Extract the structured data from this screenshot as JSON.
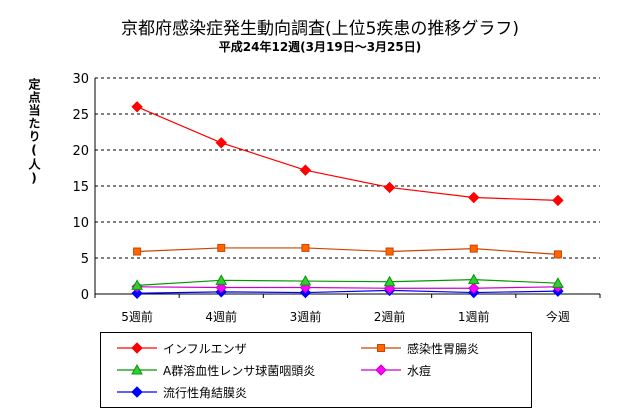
{
  "header": {
    "title": "京都府感染症発生動向調査(上位5疾患の推移グラフ)",
    "subtitle": "平成24年12週(3月19日〜3月25日)"
  },
  "chart_data": {
    "type": "line",
    "title": "京都府感染症発生動向調査(上位5疾患の推移グラフ)",
    "subtitle": "平成24年12週(3月19日〜3月25日)",
    "xlabel": "",
    "ylabel": "定点当たり(人)",
    "ylim": [
      0,
      30
    ],
    "yticks": [
      0,
      5,
      10,
      15,
      20,
      25,
      30
    ],
    "grid": "horizontal dashed",
    "legend_position": "bottom",
    "categories": [
      "5週前",
      "4週前",
      "3週前",
      "2週前",
      "1週前",
      "今週"
    ],
    "series": [
      {
        "name": "インフルエンザ",
        "color": "#ff0000",
        "marker": "diamond",
        "marker_color": "#ff0000",
        "values": [
          26.0,
          21.0,
          17.2,
          14.8,
          13.4,
          13.0
        ]
      },
      {
        "name": "感染性胃腸炎",
        "color": "#cc4400",
        "marker": "square",
        "marker_color": "#ff6600",
        "values": [
          5.9,
          6.4,
          6.4,
          5.9,
          6.3,
          5.5
        ]
      },
      {
        "name": "A群溶血性レンサ球菌咽頭炎",
        "color": "#009900",
        "marker": "triangle",
        "marker_color": "#33cc33",
        "values": [
          1.2,
          1.9,
          1.8,
          1.7,
          2.0,
          1.5
        ]
      },
      {
        "name": "水痘",
        "color": "#cc00cc",
        "marker": "diamond",
        "marker_color": "#ff00ff",
        "values": [
          1.0,
          0.9,
          0.9,
          0.8,
          0.8,
          1.0
        ]
      },
      {
        "name": "流行性角結膜炎",
        "color": "#0000ff",
        "marker": "diamond",
        "marker_color": "#0000ff",
        "values": [
          0.1,
          0.3,
          0.2,
          0.5,
          0.2,
          0.4
        ]
      }
    ]
  }
}
